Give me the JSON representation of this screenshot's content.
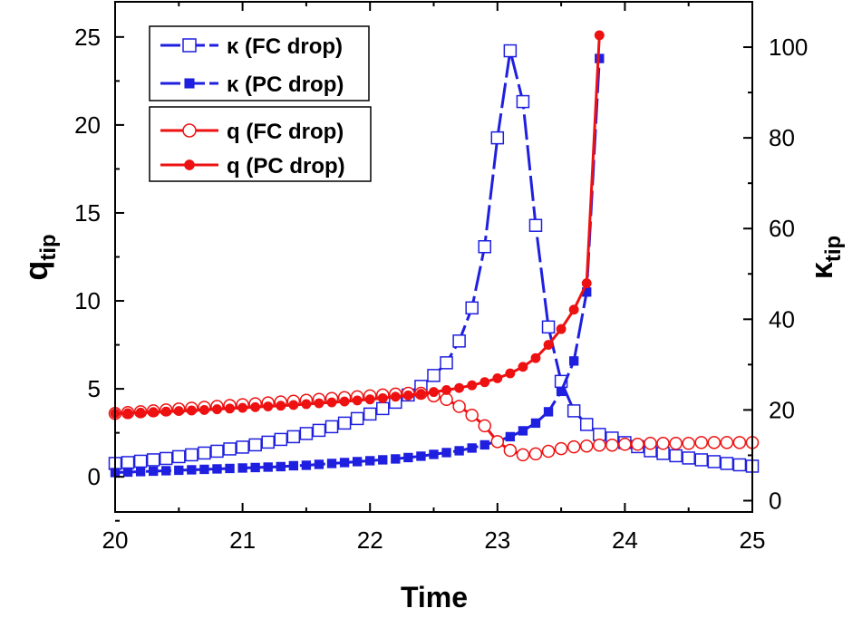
{
  "chart_data": {
    "type": "line",
    "xlabel": "Time",
    "ylabel_left": {
      "base": "q",
      "sub": "tip"
    },
    "ylabel_right": {
      "base": "κ",
      "sub": "tip"
    },
    "xlim": [
      20,
      25
    ],
    "ylim_left": [
      -2,
      27
    ],
    "ylim_right": [
      -2.5,
      110
    ],
    "x_ticks": [
      20,
      21,
      22,
      23,
      24,
      25
    ],
    "y_left_ticks": [
      0,
      5,
      10,
      15,
      20,
      25
    ],
    "y_right_ticks": [
      0,
      20,
      40,
      60,
      80,
      100
    ],
    "x_tick_labels": [
      "20",
      "21",
      "22",
      "23",
      "24",
      "25"
    ],
    "y_left_tick_labels": [
      "0",
      "5",
      "10",
      "15",
      "20",
      "25"
    ],
    "y_right_tick_labels": [
      "0",
      "20",
      "40",
      "60",
      "80",
      "100"
    ],
    "series": [
      {
        "name": "κ (FC drop)",
        "axis": "right",
        "color": "#1f1fe0",
        "marker": "open-square",
        "dash": true,
        "x": [
          20,
          20.1,
          20.2,
          20.3,
          20.4,
          20.5,
          20.6,
          20.7,
          20.8,
          20.9,
          21,
          21.1,
          21.2,
          21.3,
          21.4,
          21.5,
          21.6,
          21.7,
          21.8,
          21.9,
          22,
          22.1,
          22.2,
          22.3,
          22.4,
          22.5,
          22.6,
          22.7,
          22.8,
          22.9,
          23,
          23.1,
          23.2,
          23.3,
          23.4,
          23.5,
          23.6,
          23.7,
          23.8,
          23.9,
          24,
          24.1,
          24.2,
          24.3,
          24.4,
          24.5,
          24.6,
          24.7,
          24.8,
          24.9,
          25
        ],
        "y": [
          8.2,
          8.4,
          8.7,
          9.0,
          9.3,
          9.7,
          10.1,
          10.5,
          10.9,
          11.4,
          11.8,
          12.3,
          12.9,
          13.5,
          14.1,
          14.8,
          15.5,
          16.3,
          17.1,
          18.1,
          19.1,
          20.3,
          21.7,
          23.3,
          25.2,
          27.6,
          30.4,
          35.2,
          42.5,
          56.0,
          80.0,
          99.2,
          88.0,
          60.7,
          38.3,
          26.3,
          19.8,
          16.8,
          14.6,
          13.8,
          12.8,
          11.9,
          11.0,
          10.4,
          9.9,
          9.4,
          9.0,
          8.6,
          8.2,
          7.9,
          7.6
        ]
      },
      {
        "name": "κ (PC drop)",
        "axis": "right",
        "color": "#1f1fe0",
        "marker": "filled-square",
        "dash": true,
        "x": [
          20,
          20.1,
          20.2,
          20.3,
          20.4,
          20.5,
          20.6,
          20.7,
          20.8,
          20.9,
          21,
          21.1,
          21.2,
          21.3,
          21.4,
          21.5,
          21.6,
          21.7,
          21.8,
          21.9,
          22,
          22.1,
          22.2,
          22.3,
          22.4,
          22.5,
          22.6,
          22.7,
          22.8,
          22.9,
          23,
          23.1,
          23.2,
          23.3,
          23.4,
          23.5,
          23.6,
          23.7,
          23.8
        ],
        "y": [
          6.2,
          6.3,
          6.4,
          6.5,
          6.6,
          6.7,
          6.8,
          6.9,
          7.0,
          7.1,
          7.2,
          7.3,
          7.4,
          7.5,
          7.7,
          7.8,
          8.0,
          8.2,
          8.4,
          8.6,
          8.8,
          9.0,
          9.2,
          9.5,
          9.8,
          10.2,
          10.6,
          11.0,
          11.6,
          12.3,
          13.1,
          14.1,
          15.4,
          17.1,
          19.6,
          24.1,
          30.8,
          46.0,
          97.5
        ]
      },
      {
        "name": "q (FC drop)",
        "axis": "left",
        "color": "#ee1111",
        "marker": "open-circle",
        "dash": false,
        "x": [
          20,
          20.1,
          20.2,
          20.3,
          20.4,
          20.5,
          20.6,
          20.7,
          20.8,
          20.9,
          21,
          21.1,
          21.2,
          21.3,
          21.4,
          21.5,
          21.6,
          21.7,
          21.8,
          21.9,
          22,
          22.1,
          22.2,
          22.3,
          22.4,
          22.5,
          22.6,
          22.7,
          22.8,
          22.9,
          23,
          23.1,
          23.2,
          23.3,
          23.4,
          23.5,
          23.6,
          23.7,
          23.8,
          23.9,
          24,
          24.1,
          24.2,
          24.3,
          24.4,
          24.5,
          24.6,
          24.7,
          24.8,
          24.9,
          25
        ],
        "y": [
          3.6,
          3.65,
          3.7,
          3.75,
          3.8,
          3.85,
          3.9,
          3.95,
          4.0,
          4.05,
          4.1,
          4.15,
          4.2,
          4.25,
          4.3,
          4.35,
          4.4,
          4.45,
          4.5,
          4.55,
          4.6,
          4.65,
          4.7,
          4.75,
          4.75,
          4.6,
          4.4,
          4.0,
          3.5,
          2.9,
          2.0,
          1.5,
          1.25,
          1.3,
          1.45,
          1.6,
          1.7,
          1.75,
          1.8,
          1.8,
          1.85,
          1.85,
          1.9,
          1.9,
          1.9,
          1.9,
          1.95,
          1.95,
          1.95,
          1.95,
          1.95
        ]
      },
      {
        "name": "q (PC drop)",
        "axis": "left",
        "color": "#ee1111",
        "marker": "filled-circle",
        "dash": false,
        "x": [
          20,
          20.1,
          20.2,
          20.3,
          20.4,
          20.5,
          20.6,
          20.7,
          20.8,
          20.9,
          21,
          21.1,
          21.2,
          21.3,
          21.4,
          21.5,
          21.6,
          21.7,
          21.8,
          21.9,
          22,
          22.1,
          22.2,
          22.3,
          22.4,
          22.5,
          22.6,
          22.7,
          22.8,
          22.9,
          23,
          23.1,
          23.2,
          23.3,
          23.4,
          23.5,
          23.6,
          23.7,
          23.8
        ],
        "y": [
          3.6,
          3.62,
          3.65,
          3.68,
          3.71,
          3.74,
          3.77,
          3.8,
          3.84,
          3.88,
          3.92,
          3.96,
          4.0,
          4.04,
          4.08,
          4.13,
          4.18,
          4.23,
          4.28,
          4.34,
          4.4,
          4.47,
          4.55,
          4.63,
          4.72,
          4.82,
          4.93,
          5.05,
          5.2,
          5.38,
          5.6,
          5.88,
          6.25,
          6.75,
          7.5,
          8.4,
          9.5,
          11.0,
          25.1
        ]
      }
    ],
    "legend": {
      "placement": "top-left",
      "groups": [
        [
          "κ (FC drop)",
          "κ (PC drop)"
        ],
        [
          "q (FC drop)",
          "q (PC drop)"
        ]
      ]
    }
  }
}
